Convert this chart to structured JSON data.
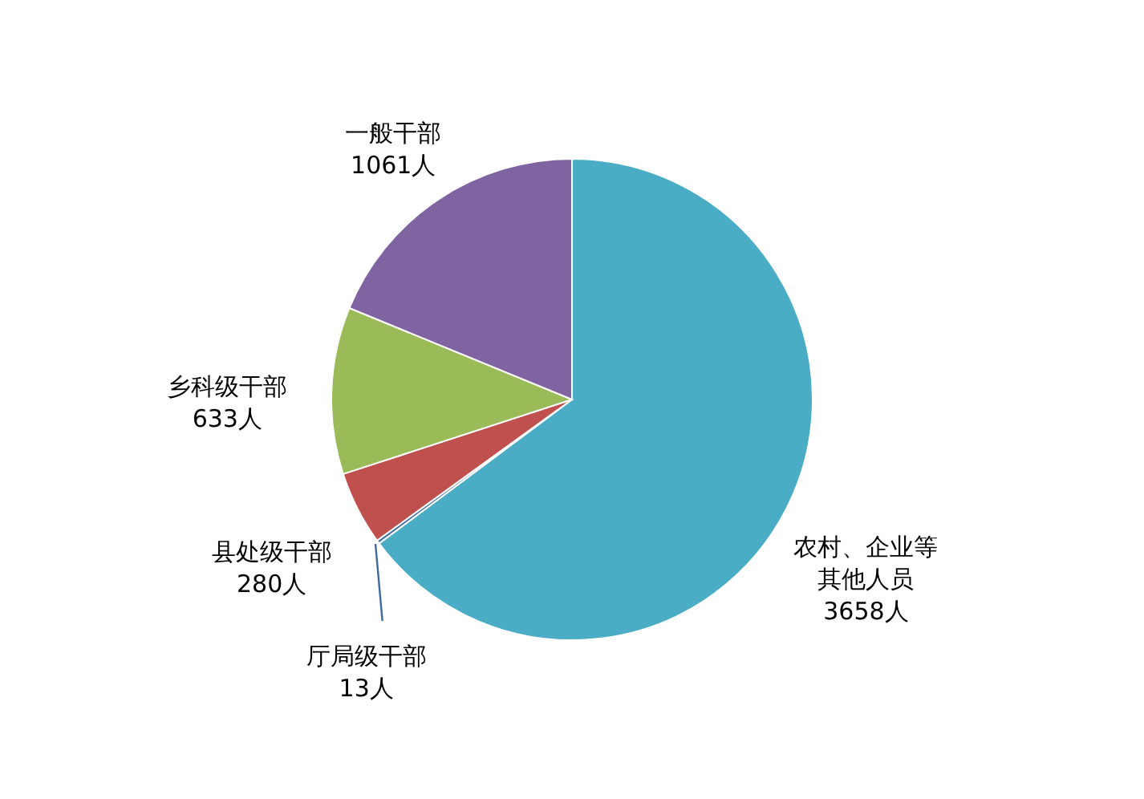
{
  "chart_data": {
    "type": "pie",
    "categories": [
      "农村、企业等其他人员",
      "厅局级干部",
      "县处级干部",
      "乡科级干部",
      "一般干部"
    ],
    "values": [
      3658,
      13,
      280,
      633,
      1061
    ],
    "colors": [
      "#4bacc6",
      "#3d6aa0",
      "#c0504d",
      "#9bbb59",
      "#8064a2"
    ],
    "value_labels": [
      "3658人",
      "13人",
      "280人",
      "633人",
      "1061人"
    ]
  }
}
